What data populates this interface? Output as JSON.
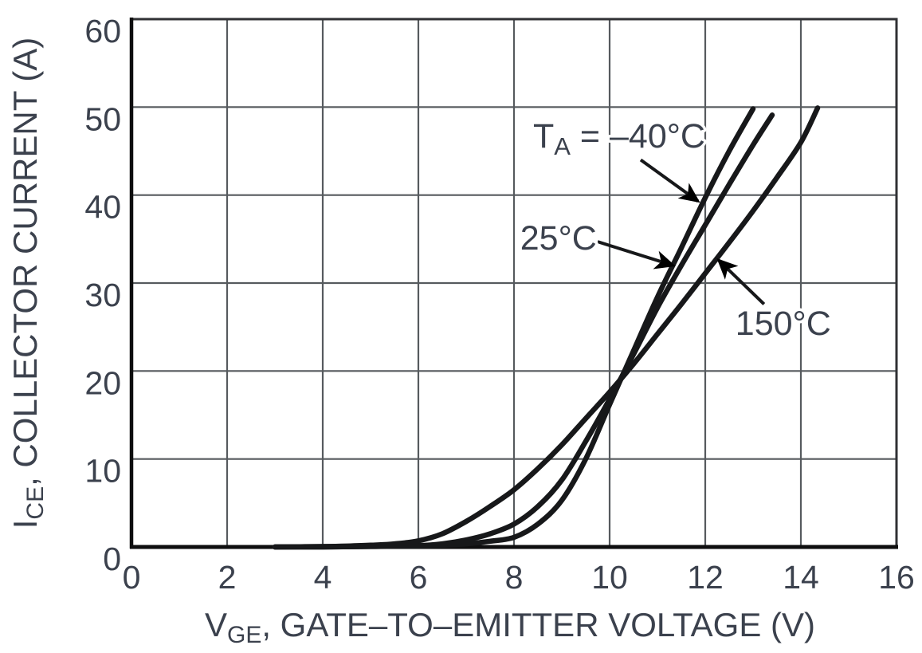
{
  "chart_data": {
    "type": "line",
    "title": "",
    "xlabel": {
      "pre": "V",
      "sub": "GE",
      "post": ", GATE–TO–EMITTER VOLTAGE (V)"
    },
    "ylabel": {
      "pre": "I",
      "sub": "CE",
      "post": ", COLLECTOR CURRENT (A)"
    },
    "xlim": [
      0,
      16
    ],
    "ylim": [
      0,
      60
    ],
    "x_ticks": [
      0,
      2,
      4,
      6,
      8,
      10,
      12,
      14,
      16
    ],
    "y_ticks": [
      0,
      10,
      20,
      30,
      40,
      50,
      60
    ],
    "grid": true,
    "legend_position": "none",
    "series": [
      {
        "name": "TA = -40°C",
        "points": [
          [
            3,
            0
          ],
          [
            4,
            0
          ],
          [
            5,
            0.05
          ],
          [
            6,
            0.1
          ],
          [
            6.5,
            0.2
          ],
          [
            7,
            0.35
          ],
          [
            7.5,
            0.65
          ],
          [
            8,
            1.1
          ],
          [
            8.5,
            2.6
          ],
          [
            9,
            5.3
          ],
          [
            9.5,
            10
          ],
          [
            10,
            16.2
          ],
          [
            10.5,
            22.3
          ],
          [
            11,
            28.4
          ],
          [
            11.5,
            34
          ],
          [
            12,
            39.7
          ],
          [
            12.5,
            45
          ],
          [
            13,
            49.8
          ]
        ]
      },
      {
        "name": "25°C",
        "points": [
          [
            3,
            0
          ],
          [
            4,
            0
          ],
          [
            5,
            0.05
          ],
          [
            6,
            0.15
          ],
          [
            6.5,
            0.35
          ],
          [
            7,
            0.8
          ],
          [
            7.5,
            1.5
          ],
          [
            8,
            2.6
          ],
          [
            8.5,
            4.6
          ],
          [
            9,
            7.6
          ],
          [
            9.5,
            12
          ],
          [
            10,
            16.8
          ],
          [
            10.5,
            21.9
          ],
          [
            11,
            27.2
          ],
          [
            11.5,
            32
          ],
          [
            12,
            36.6
          ],
          [
            12.5,
            41.2
          ],
          [
            13,
            45.7
          ],
          [
            13.4,
            49.1
          ]
        ]
      },
      {
        "name": "150°C",
        "points": [
          [
            3,
            0
          ],
          [
            4,
            0.05
          ],
          [
            4.5,
            0.1
          ],
          [
            5,
            0.2
          ],
          [
            5.5,
            0.35
          ],
          [
            6,
            0.7
          ],
          [
            6.5,
            1.5
          ],
          [
            7,
            2.9
          ],
          [
            7.5,
            4.6
          ],
          [
            8,
            6.5
          ],
          [
            8.5,
            8.9
          ],
          [
            9,
            11.6
          ],
          [
            9.5,
            14.6
          ],
          [
            10,
            17.6
          ],
          [
            10.5,
            20.8
          ],
          [
            11,
            24.2
          ],
          [
            11.5,
            27.6
          ],
          [
            12,
            31.1
          ],
          [
            12.5,
            34.6
          ],
          [
            13,
            38.2
          ],
          [
            13.5,
            42
          ],
          [
            14,
            46
          ],
          [
            14.35,
            49.9
          ]
        ]
      }
    ],
    "annotations": [
      {
        "id": "anno-minus40",
        "label": {
          "pre": "T",
          "sub": "A",
          "post": " = –40°C"
        },
        "text_v": 10.2,
        "text_i": 45.4,
        "arrow_tail": [
          10.65,
          44.0
        ],
        "arrow_tip": [
          11.85,
          39.3
        ]
      },
      {
        "id": "anno-25",
        "label": {
          "pre": "",
          "sub": "",
          "post": "25°C"
        },
        "text_v": 8.93,
        "text_i": 33.8,
        "arrow_tail": [
          9.75,
          34.7
        ],
        "arrow_tip": [
          11.33,
          32.0
        ]
      },
      {
        "id": "anno-150",
        "label": {
          "pre": "",
          "sub": "",
          "post": "150°C"
        },
        "text_v": 13.63,
        "text_i": 24.1,
        "arrow_tail": [
          13.23,
          27.6
        ],
        "arrow_tip": [
          12.28,
          32.6
        ]
      }
    ]
  },
  "style": {
    "background": "#ffffff",
    "text_color": "#3b414d",
    "curve_color": "#17181a",
    "grid_color": "#565a5e",
    "frame_color": "#303134",
    "axis_color": "#0e0e0f",
    "arrow_color": "#17181a",
    "halo_color": "#ffffff"
  }
}
